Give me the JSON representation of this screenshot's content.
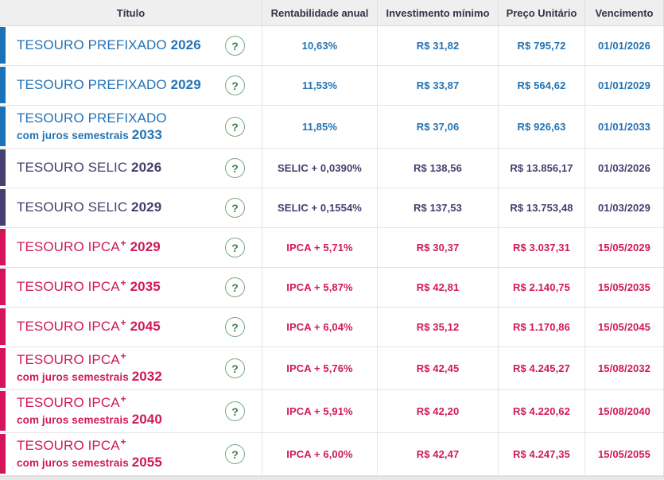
{
  "columns": [
    "Título",
    "Rentabilidade anual",
    "Investimento mínimo",
    "Preço Unitário",
    "Vencimento"
  ],
  "help_glyph": "?",
  "colors": {
    "header_bg": "#EFEFEF",
    "header_text": "#33334A",
    "border": "#E4E4E4",
    "help_border": "#79A882",
    "help_text": "#3E7E4C",
    "prefixado": {
      "bar": "#1C72B7",
      "text": "#2373B5"
    },
    "selic": {
      "bar": "#474071",
      "text": "#443E6D"
    },
    "ipca": {
      "bar": "#D4145A",
      "text": "#D01959"
    }
  },
  "rows": [
    {
      "category": "prefixado",
      "name": "TESOURO PREFIXADO",
      "name_suffix": "",
      "subtitle": "",
      "year": "2026",
      "rate": "10,63%",
      "min": "R$ 31,82",
      "price": "R$ 795,72",
      "maturity": "01/01/2026"
    },
    {
      "category": "prefixado",
      "name": "TESOURO PREFIXADO",
      "name_suffix": "",
      "subtitle": "",
      "year": "2029",
      "rate": "11,53%",
      "min": "R$ 33,87",
      "price": "R$ 564,62",
      "maturity": "01/01/2029"
    },
    {
      "category": "prefixado",
      "name": "TESOURO PREFIXADO",
      "name_suffix": "",
      "subtitle": "com juros semestrais",
      "year": "2033",
      "rate": "11,85%",
      "min": "R$ 37,06",
      "price": "R$ 926,63",
      "maturity": "01/01/2033"
    },
    {
      "category": "selic",
      "name": "TESOURO SELIC",
      "name_suffix": "",
      "subtitle": "",
      "year": "2026",
      "rate": "SELIC + 0,0390%",
      "min": "R$ 138,56",
      "price": "R$ 13.856,17",
      "maturity": "01/03/2026"
    },
    {
      "category": "selic",
      "name": "TESOURO SELIC",
      "name_suffix": "",
      "subtitle": "",
      "year": "2029",
      "rate": "SELIC + 0,1554%",
      "min": "R$ 137,53",
      "price": "R$ 13.753,48",
      "maturity": "01/03/2029"
    },
    {
      "category": "ipca",
      "name": "TESOURO IPCA",
      "name_suffix": "+",
      "subtitle": "",
      "year": "2029",
      "rate": "IPCA + 5,71%",
      "min": "R$ 30,37",
      "price": "R$ 3.037,31",
      "maturity": "15/05/2029"
    },
    {
      "category": "ipca",
      "name": "TESOURO IPCA",
      "name_suffix": "+",
      "subtitle": "",
      "year": "2035",
      "rate": "IPCA + 5,87%",
      "min": "R$ 42,81",
      "price": "R$ 2.140,75",
      "maturity": "15/05/2035"
    },
    {
      "category": "ipca",
      "name": "TESOURO IPCA",
      "name_suffix": "+",
      "subtitle": "",
      "year": "2045",
      "rate": "IPCA + 6,04%",
      "min": "R$ 35,12",
      "price": "R$ 1.170,86",
      "maturity": "15/05/2045"
    },
    {
      "category": "ipca",
      "name": "TESOURO IPCA",
      "name_suffix": "+",
      "subtitle": "com juros semestrais",
      "year": "2032",
      "rate": "IPCA + 5,76%",
      "min": "R$ 42,45",
      "price": "R$ 4.245,27",
      "maturity": "15/08/2032"
    },
    {
      "category": "ipca",
      "name": "TESOURO IPCA",
      "name_suffix": "+",
      "subtitle": "com juros semestrais",
      "year": "2040",
      "rate": "IPCA + 5,91%",
      "min": "R$ 42,20",
      "price": "R$ 4.220,62",
      "maturity": "15/08/2040"
    },
    {
      "category": "ipca",
      "name": "TESOURO IPCA",
      "name_suffix": "+",
      "subtitle": "com juros semestrais",
      "year": "2055",
      "rate": "IPCA + 6,00%",
      "min": "R$ 42,47",
      "price": "R$ 4.247,35",
      "maturity": "15/05/2055"
    }
  ]
}
